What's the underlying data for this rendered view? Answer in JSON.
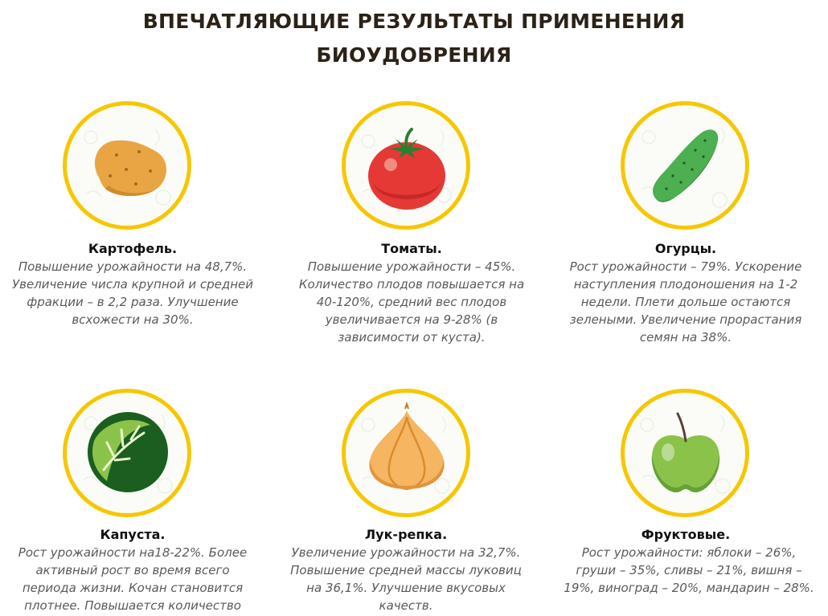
{
  "title": {
    "line1": "ВПЕЧАТЛЯЮЩИЕ РЕЗУЛЬТАТЫ ПРИМЕНЕНИЯ",
    "line2": "БИОУДОБРЕНИЯ"
  },
  "colors": {
    "ring": "#f6c700",
    "heading": "#2b2218",
    "text": "#5a5a5a"
  },
  "items": [
    {
      "icon": "potato-icon",
      "name": "Картофель.",
      "lines": [
        "Повышение урожайности на 48,7%.",
        "Увеличение числа крупной и средней",
        "фракции – в 2,2 раза. Улучшение",
        "всхожести на 30%."
      ]
    },
    {
      "icon": "tomato-icon",
      "name": "Томаты.",
      "lines": [
        "Повышение урожайности – 45%.",
        "Количество плодов повышается на",
        "40-120%, средний вес плодов",
        "увеличивается на 9-28% (в",
        "зависимости от куста)."
      ]
    },
    {
      "icon": "cucumber-icon",
      "name": "Огурцы.",
      "lines": [
        "Рост урожайности – 79%. Ускорение",
        "наступления плодоношения на 1-2",
        "недели. Плети дольше остаются",
        "зелеными. Увеличение прорастания",
        "семян на 38%."
      ]
    },
    {
      "icon": "cabbage-icon",
      "name": "Капуста.",
      "lines": [
        "Рост урожайности на18-22%. Более",
        "активный рост во время всего",
        "периода жизни. Кочан становится",
        "плотнее. Повышается количество"
      ]
    },
    {
      "icon": "onion-icon",
      "name": "Лук-репка.",
      "lines": [
        "Увеличение урожайности на 32,7%.",
        "Повышение средней массы луковиц",
        "на 36,1%. Улучшение вкусовых",
        "качеств."
      ]
    },
    {
      "icon": "apple-icon",
      "name": "Фруктовые.",
      "lines": [
        "Рост урожайности: яблоки – 26%,",
        "груши – 35%, сливы – 21%, вишня –",
        "19%, виноград – 20%, мандарин – 28%."
      ]
    }
  ]
}
